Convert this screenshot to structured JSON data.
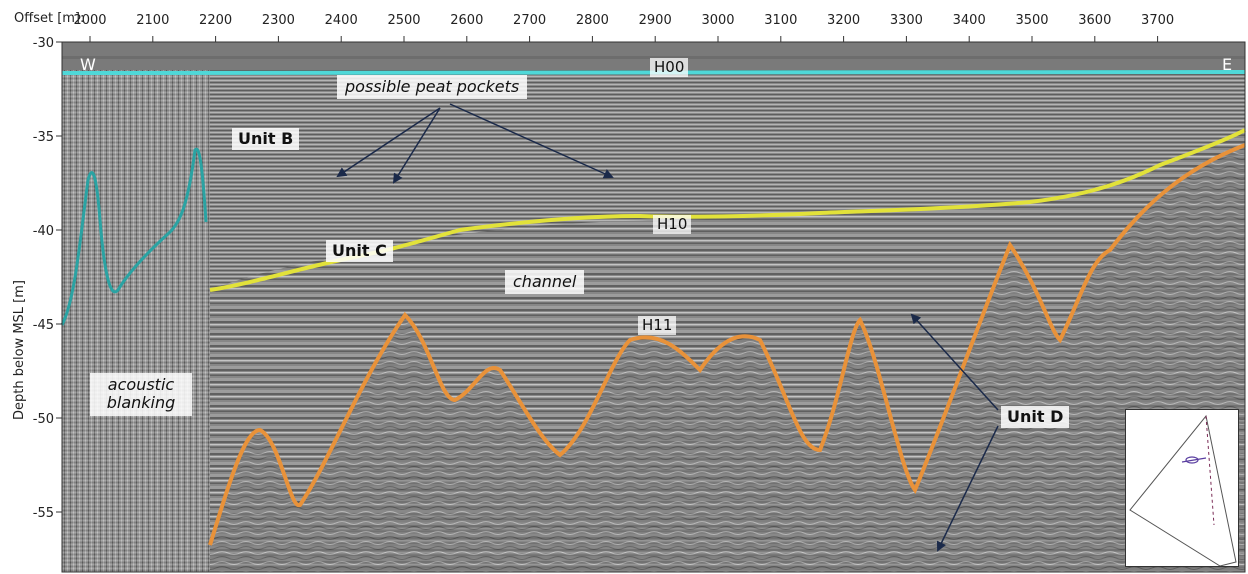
{
  "axes": {
    "x_title": "Offset [m]:",
    "x_ticks": [
      "2000",
      "2100",
      "2200",
      "2300",
      "2400",
      "2500",
      "2600",
      "2700",
      "2800",
      "2900",
      "3000",
      "3100",
      "3200",
      "3300",
      "3400",
      "3500",
      "3600",
      "3700"
    ],
    "y_title": "Depth below MSL [m]",
    "y_ticks": [
      "-30",
      "-35",
      "-40",
      "-45",
      "-50",
      "-55"
    ]
  },
  "labels": {
    "west": "W",
    "east": "E",
    "h00": "H00",
    "h10": "H10",
    "h11": "H11",
    "peat": "possible peat pockets",
    "unit_b": "Unit B",
    "unit_c": "Unit C",
    "unit_d": "Unit D",
    "channel": "channel",
    "blanking_line1": "acoustic",
    "blanking_line2": "blanking"
  },
  "colors": {
    "h00": "#4fd8d8",
    "h10": "#e2e23a",
    "h11": "#e8923a",
    "blanking_outline": "#2aa3a3",
    "arrow": "#1b2a4a",
    "seismic_bg": "#8c8c8c"
  }
}
